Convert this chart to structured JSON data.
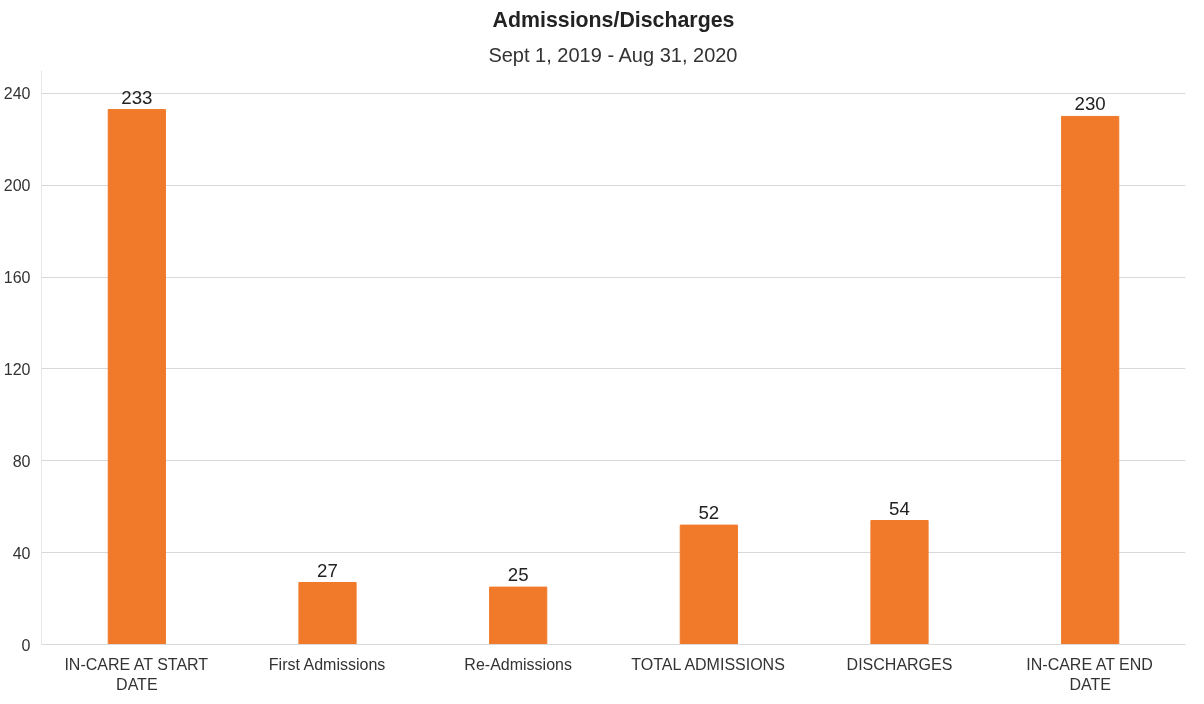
{
  "chart_data": {
    "type": "bar",
    "title": "Admissions/Discharges",
    "subtitle": "Sept 1, 2019 - Aug 31, 2020",
    "categories": [
      "IN-CARE AT START DATE",
      "First Admissions",
      "Re-Admissions",
      "TOTAL ADMISSIONS",
      "DISCHARGES",
      "IN-CARE AT END DATE"
    ],
    "values": [
      233,
      27,
      25,
      52,
      54,
      230
    ],
    "color": "#f07a2a",
    "ylim": [
      0,
      250
    ],
    "yticks": [
      0,
      40,
      80,
      120,
      160,
      200,
      240
    ],
    "grid": "y",
    "data_labels": true
  }
}
